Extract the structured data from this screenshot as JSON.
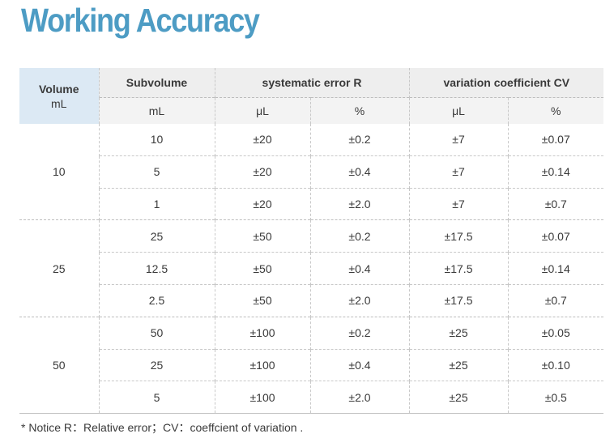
{
  "title": "Working Accuracy",
  "headers": {
    "volume": "Volume",
    "volume_unit": "mL",
    "subvolume": "Subvolume",
    "subvolume_unit": "mL",
    "systematic": "systematic error R",
    "systematic_unit_abs": "μL",
    "systematic_unit_pct": "%",
    "variation": "variation coefficient CV",
    "variation_unit_abs": "μL",
    "variation_unit_pct": "%"
  },
  "groups": [
    {
      "volume": "10",
      "rows": [
        {
          "sub": "10",
          "r_ul": "±20",
          "r_pct": "±0.2",
          "cv_ul": "±7",
          "cv_pct": "±0.07"
        },
        {
          "sub": "5",
          "r_ul": "±20",
          "r_pct": "±0.4",
          "cv_ul": "±7",
          "cv_pct": "±0.14"
        },
        {
          "sub": "1",
          "r_ul": "±20",
          "r_pct": "±2.0",
          "cv_ul": "±7",
          "cv_pct": "±0.7"
        }
      ]
    },
    {
      "volume": "25",
      "rows": [
        {
          "sub": "25",
          "r_ul": "±50",
          "r_pct": "±0.2",
          "cv_ul": "±17.5",
          "cv_pct": "±0.07"
        },
        {
          "sub": "12.5",
          "r_ul": "±50",
          "r_pct": "±0.4",
          "cv_ul": "±17.5",
          "cv_pct": "±0.14"
        },
        {
          "sub": "2.5",
          "r_ul": "±50",
          "r_pct": "±2.0",
          "cv_ul": "±17.5",
          "cv_pct": "±0.7"
        }
      ]
    },
    {
      "volume": "50",
      "rows": [
        {
          "sub": "50",
          "r_ul": "±100",
          "r_pct": "±0.2",
          "cv_ul": "±25",
          "cv_pct": "±0.05"
        },
        {
          "sub": "25",
          "r_ul": "±100",
          "r_pct": "±0.4",
          "cv_ul": "±25",
          "cv_pct": "±0.10"
        },
        {
          "sub": "5",
          "r_ul": "±100",
          "r_pct": "±2.0",
          "cv_ul": "±25",
          "cv_pct": "±0.5"
        }
      ]
    }
  ],
  "note": "* Notice R：Relative error；CV：coeffcient of variation ."
}
